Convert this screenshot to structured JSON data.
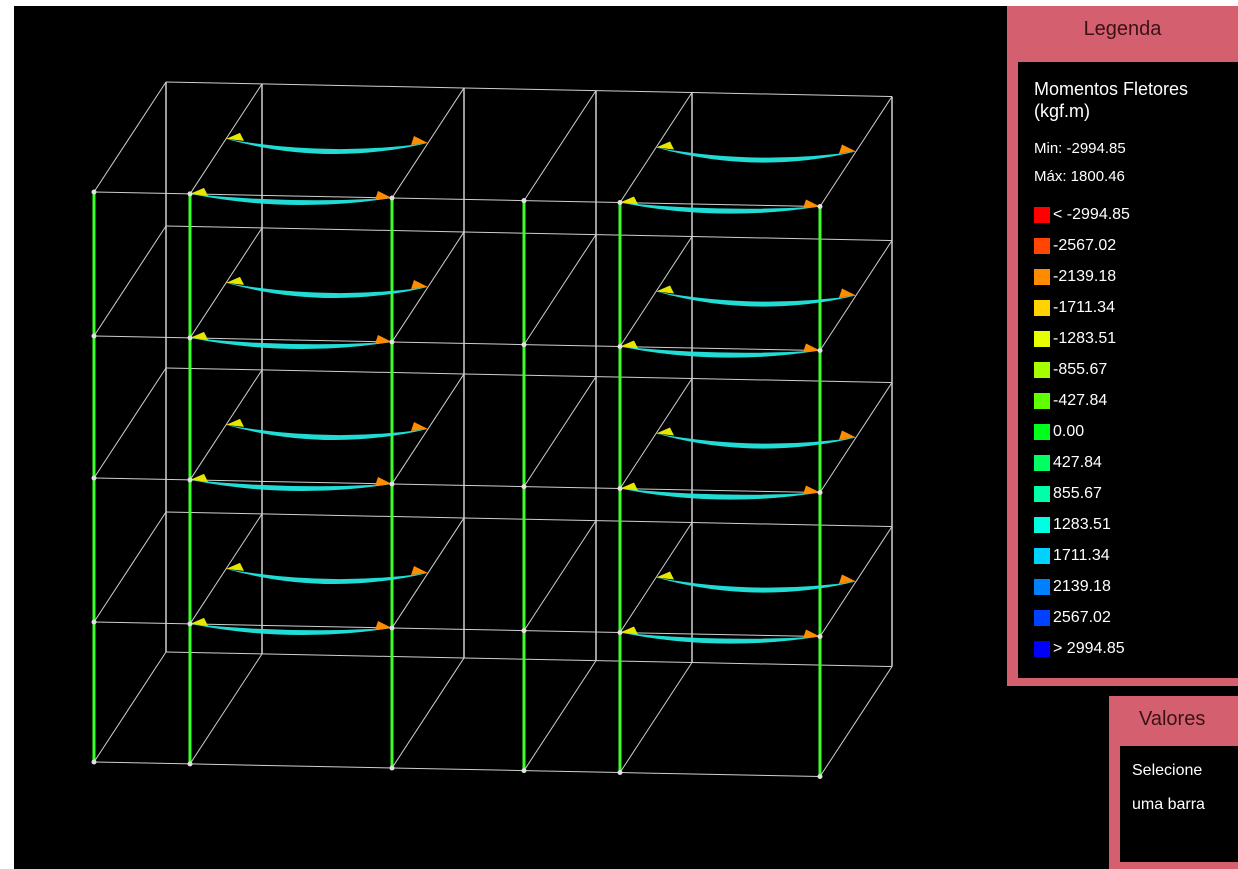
{
  "legend": {
    "title": "Legenda",
    "heading_line1": "Momentos Fletores",
    "heading_line2": "(kgf.m)",
    "min": "Min: -2994.85",
    "max": "Máx: 1800.46",
    "items": [
      {
        "label": "< -2994.85",
        "color": "#ff0000"
      },
      {
        "label": "-2567.02",
        "color": "#ff4500"
      },
      {
        "label": "-2139.18",
        "color": "#ff8c00"
      },
      {
        "label": "-1711.34",
        "color": "#ffd200"
      },
      {
        "label": "-1283.51",
        "color": "#e6ff00"
      },
      {
        "label": "-855.67",
        "color": "#a6ff00"
      },
      {
        "label": "-427.84",
        "color": "#5fff00"
      },
      {
        "label": "0.00",
        "color": "#00ff1a"
      },
      {
        "label": "427.84",
        "color": "#00ff60"
      },
      {
        "label": "855.67",
        "color": "#00ffa6"
      },
      {
        "label": "1283.51",
        "color": "#00ffe0"
      },
      {
        "label": "1711.34",
        "color": "#00d2ff"
      },
      {
        "label": "2139.18",
        "color": "#0080ff"
      },
      {
        "label": "2567.02",
        "color": "#0040ff"
      },
      {
        "label": "> 2994.85",
        "color": "#0000ff"
      }
    ]
  },
  "values": {
    "title": "Valores",
    "line1": "Selecione",
    "line2": "uma barra"
  },
  "colors": {
    "panel": "#d4606f",
    "background": "#000000",
    "frame_line": "#cfcfcf",
    "column": "#3cff2a",
    "beam_positive": "#22e8e0",
    "beam_negative": "#e6e600"
  }
}
